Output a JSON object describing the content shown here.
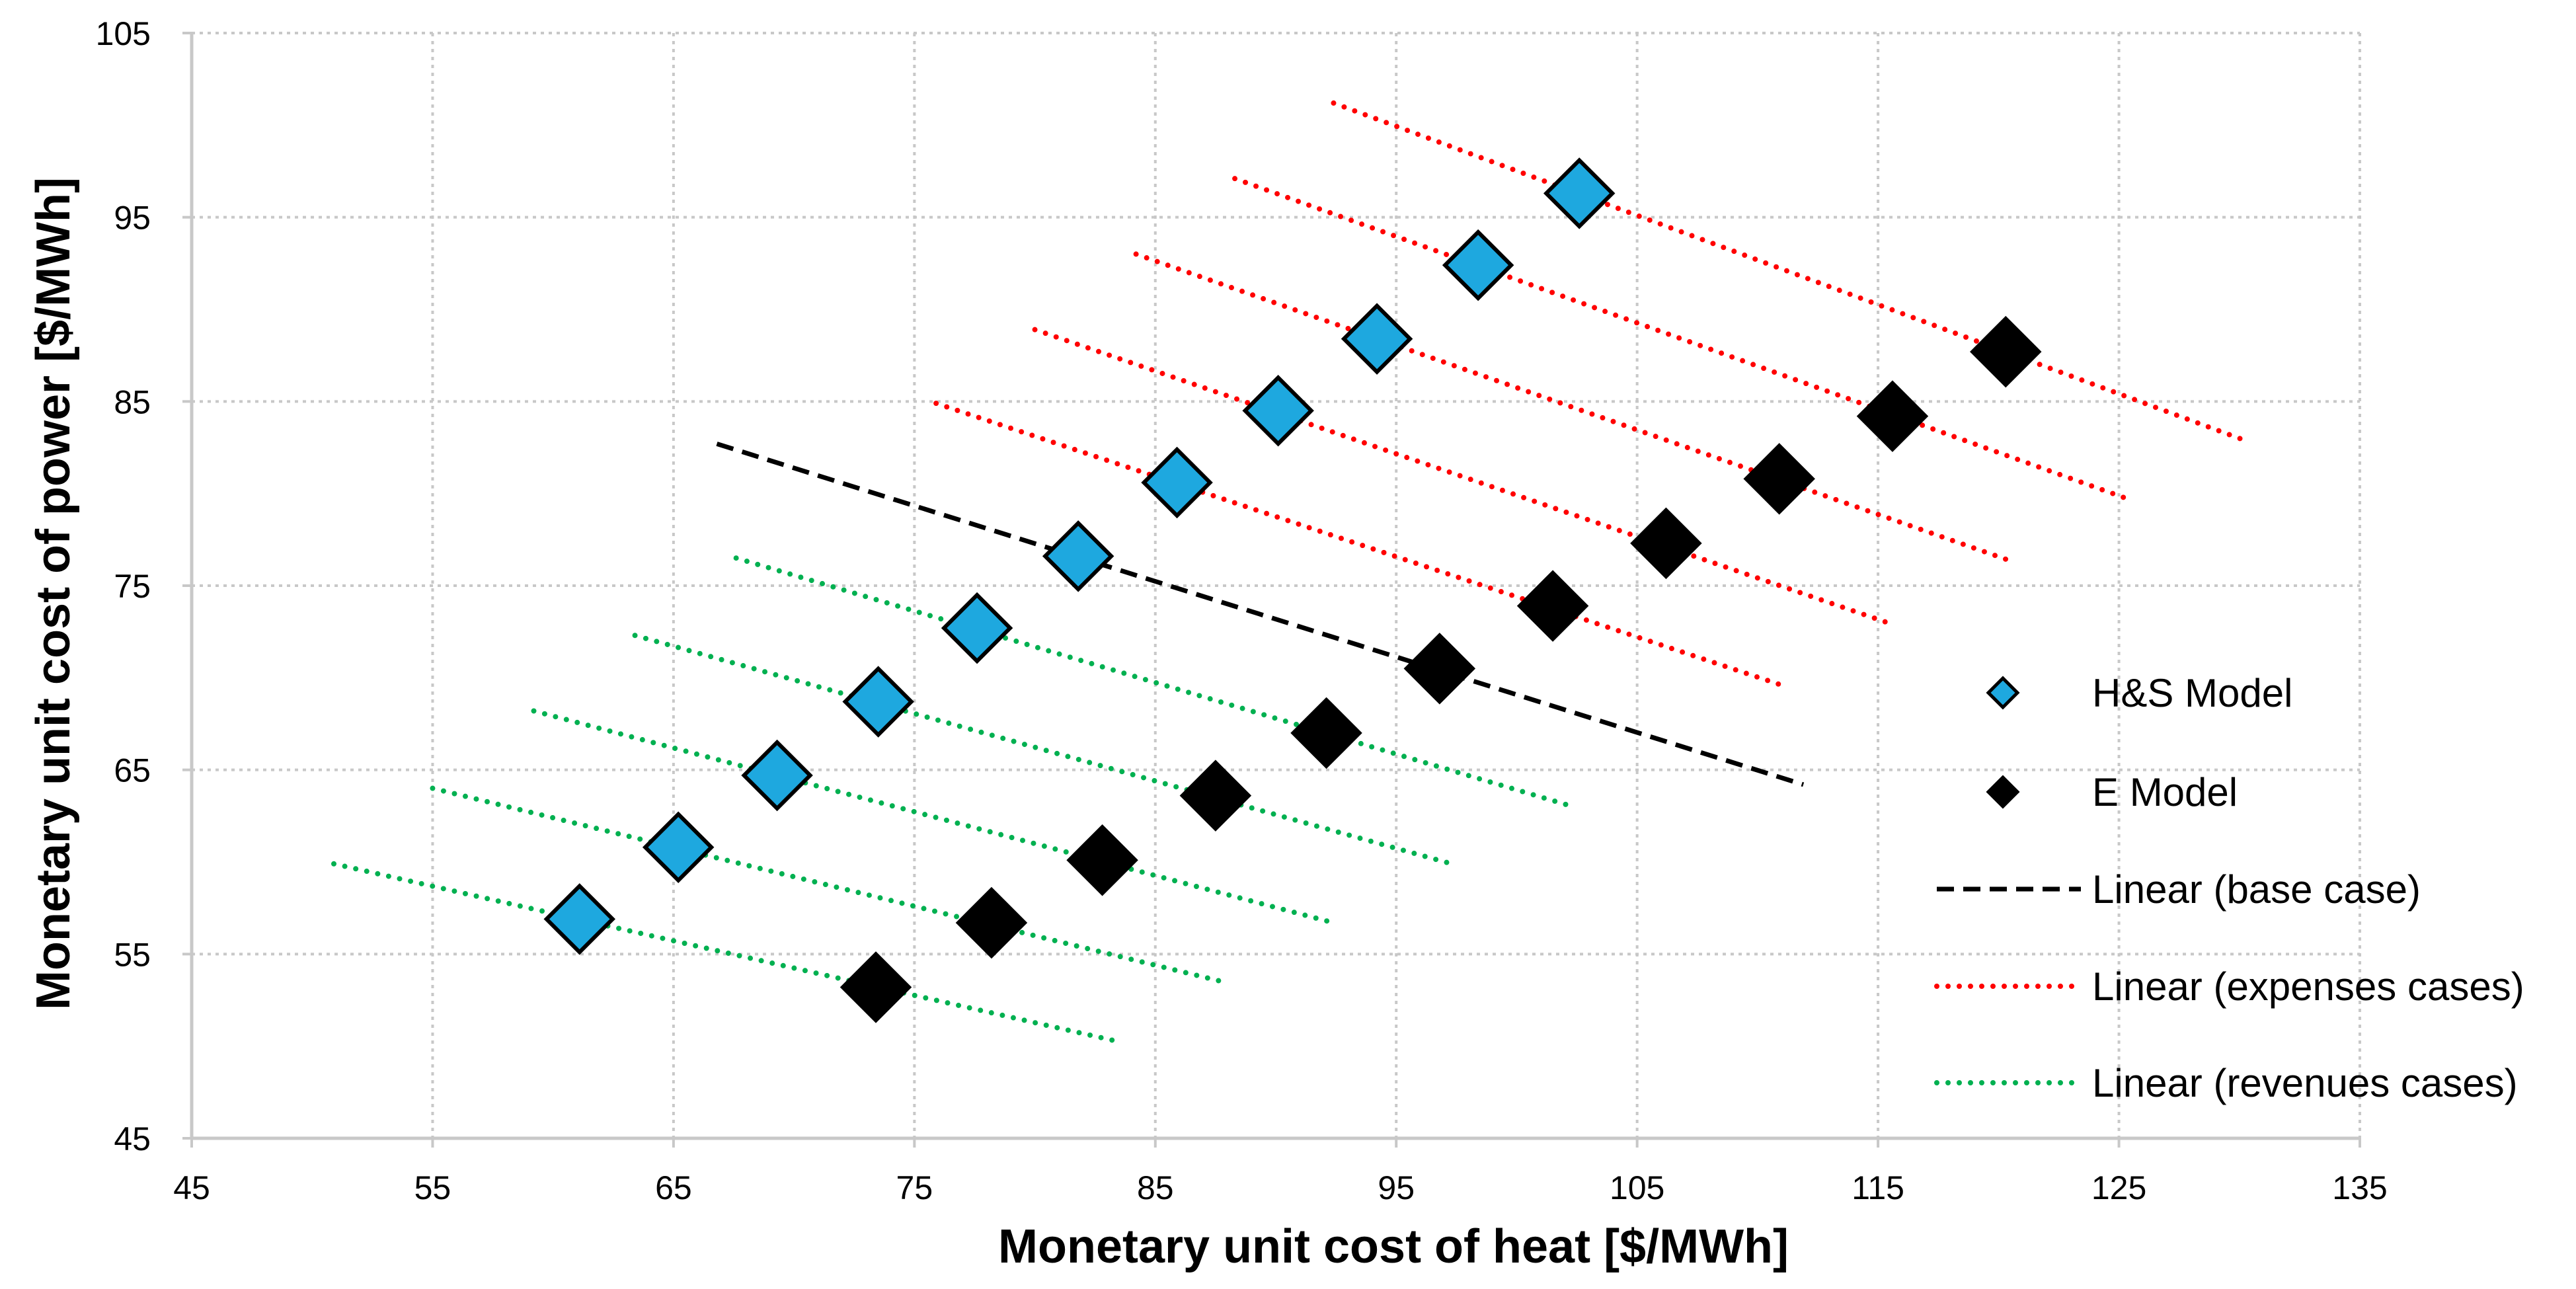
{
  "chart_data": {
    "type": "scatter",
    "xlabel": "Monetary unit cost of heat [$/MWh]",
    "ylabel": "Monetary unit cost of power [$/MWh]",
    "xlim": [
      45,
      135
    ],
    "ylim": [
      45,
      105
    ],
    "x_ticks": [
      45,
      55,
      65,
      75,
      85,
      95,
      105,
      115,
      125,
      135
    ],
    "y_ticks": [
      45,
      55,
      65,
      75,
      85,
      95,
      105
    ],
    "grid": true,
    "legend_position": "right",
    "series": [
      {
        "name": "H&S Model",
        "kind": "marker",
        "marker": "diamond",
        "color": "#1EA8DF",
        "points": [
          [
            61.1,
            56.9
          ],
          [
            65.2,
            60.8
          ],
          [
            69.3,
            64.7
          ],
          [
            73.5,
            68.7
          ],
          [
            77.6,
            72.7
          ],
          [
            81.8,
            76.6
          ],
          [
            85.9,
            80.6
          ],
          [
            90.1,
            84.5
          ],
          [
            94.2,
            88.4
          ],
          [
            98.4,
            92.4
          ],
          [
            102.6,
            96.3
          ]
        ]
      },
      {
        "name": "E Model",
        "kind": "marker",
        "marker": "diamond",
        "color": "#000000",
        "points": [
          [
            73.4,
            53.2
          ],
          [
            78.2,
            56.7
          ],
          [
            82.8,
            60.1
          ],
          [
            87.5,
            63.6
          ],
          [
            92.1,
            67.0
          ],
          [
            96.8,
            70.5
          ],
          [
            101.5,
            73.9
          ],
          [
            106.2,
            77.3
          ],
          [
            110.9,
            80.8
          ],
          [
            115.6,
            84.2
          ],
          [
            120.3,
            87.7
          ]
        ]
      },
      {
        "name": "Linear (base case)",
        "kind": "line",
        "style": "dashed",
        "color": "#000000",
        "lines": [
          [
            [
              66.8,
              82.7
            ],
            [
              111.9,
              64.2
            ]
          ]
        ]
      },
      {
        "name": "Linear (expenses cases)",
        "kind": "line",
        "style": "dotted",
        "color": "#FF0000",
        "lines": [
          [
            [
              75.9,
              84.9
            ],
            [
              111.0,
              69.6
            ]
          ],
          [
            [
              80.0,
              88.9
            ],
            [
              115.6,
              72.9
            ]
          ],
          [
            [
              84.2,
              93.0
            ],
            [
              120.6,
              76.3
            ]
          ],
          [
            [
              88.3,
              97.1
            ],
            [
              125.6,
              79.6
            ]
          ],
          [
            [
              92.4,
              101.2
            ],
            [
              130.2,
              82.9
            ]
          ]
        ]
      },
      {
        "name": "Linear (revenues cases)",
        "kind": "line",
        "style": "dotted",
        "color": "#00B050",
        "lines": [
          [
            [
              50.9,
              59.9
            ],
            [
              83.3,
              50.3
            ]
          ],
          [
            [
              55.0,
              64.0
            ],
            [
              87.8,
              53.5
            ]
          ],
          [
            [
              59.2,
              68.2
            ],
            [
              92.4,
              56.7
            ]
          ],
          [
            [
              63.4,
              72.3
            ],
            [
              97.3,
              59.9
            ]
          ],
          [
            [
              67.6,
              76.5
            ],
            [
              102.1,
              63.1
            ]
          ]
        ]
      }
    ]
  }
}
